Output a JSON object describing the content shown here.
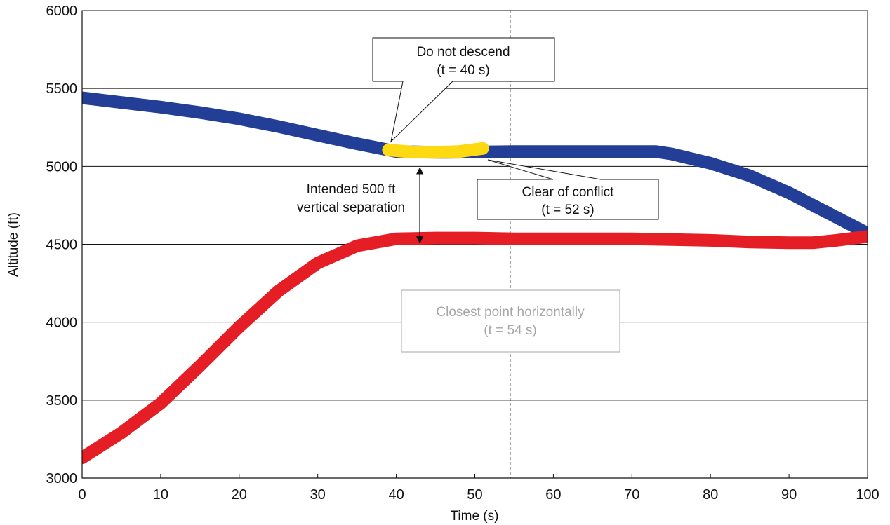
{
  "chart_data": {
    "type": "line",
    "title": "",
    "xlabel": "Time (s)",
    "ylabel": "Altitude (ft)",
    "xlim": [
      0,
      100
    ],
    "ylim": [
      3000,
      6000
    ],
    "x_ticks": [
      "0",
      "10",
      "20",
      "30",
      "40",
      "50",
      "60",
      "70",
      "80",
      "90",
      "100"
    ],
    "y_ticks": [
      "3000",
      "3500",
      "4000",
      "4500",
      "5000",
      "5500",
      "6000"
    ],
    "grid": "horizontal",
    "legend": "none",
    "series": [
      {
        "color": "#223e96",
        "x": [
          0,
          5,
          10,
          15,
          20,
          25,
          30,
          35,
          40,
          45,
          50,
          55,
          60,
          65,
          70,
          73,
          75,
          80,
          85,
          90,
          95,
          100
        ],
        "y": [
          5440,
          5410,
          5380,
          5345,
          5305,
          5255,
          5200,
          5145,
          5095,
          5090,
          5092,
          5095,
          5095,
          5095,
          5095,
          5095,
          5080,
          5020,
          4940,
          4830,
          4700,
          4570
        ]
      },
      {
        "color": "#e51e25",
        "x": [
          0,
          5,
          10,
          15,
          20,
          25,
          30,
          35,
          40,
          45,
          50,
          55,
          60,
          65,
          70,
          75,
          80,
          85,
          90,
          93,
          96,
          100
        ],
        "y": [
          3130,
          3290,
          3480,
          3720,
          3970,
          4200,
          4380,
          4490,
          4535,
          4540,
          4540,
          4535,
          4535,
          4535,
          4535,
          4530,
          4525,
          4515,
          4510,
          4510,
          4525,
          4550
        ]
      },
      {
        "color": "#fcd911",
        "x": [
          39,
          42,
          45,
          48,
          51
        ],
        "y": [
          5105,
          5092,
          5090,
          5095,
          5115
        ]
      }
    ],
    "reference_lines": [
      {
        "axis": "x",
        "value": 54.5,
        "style": "dashed"
      }
    ],
    "annotations": [
      {
        "text_lines": [
          "Do not descend",
          "(t = 40 s)"
        ],
        "points_to": {
          "x": 39,
          "y": 5105
        }
      },
      {
        "text_lines": [
          "Clear of conflict",
          "(t = 52 s)"
        ],
        "points_to": {
          "x": 51.5,
          "y": 5040
        }
      },
      {
        "text_lines": [
          "Closest point horizontally",
          "(t = 54 s)"
        ],
        "color": "#a7a7a7"
      },
      {
        "text_lines": [
          "Intended 500 ft",
          "vertical separation"
        ],
        "arrow_x": 43,
        "arrow_from": 5000,
        "arrow_to": 4500
      }
    ]
  }
}
